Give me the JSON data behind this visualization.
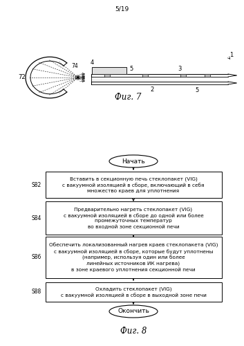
{
  "page_label": "5/19",
  "fig7_label": "Фиг. 7",
  "fig8_label": "Фиг. 8",
  "flowchart": {
    "start_text": "Начать",
    "end_text": "Окончить",
    "steps": [
      {
        "label": "S82",
        "text": "Вставить в секционную печь стеклопакет (VIG)\nс вакуумной изоляцией в сборе, включающий в себя\nмножество краев для уплотнения"
      },
      {
        "label": "S84",
        "text": "Предварительно нагреть стеклопакет (VIG)\nс вакуумной изоляцией в сборе до одной или более\nпромежуточных температур\nво входной зоне секционной печи"
      },
      {
        "label": "S86",
        "text": "Обеспечить локализованный нагрев краев стеклопакета (VIG)\nс вакуумной изоляцией в сборе, которые будут уплотнены\n(например, используя один или более\nлинейных источников ИК нагрева)\nв зоне краевого уплотнения секционной печи"
      },
      {
        "label": "S88",
        "text": "Охладить стеклопакет (VIG)\nс вакуумной изоляцией в сборе в выходной зоне печи"
      }
    ]
  },
  "bg_color": "#ffffff",
  "text_color": "#000000"
}
